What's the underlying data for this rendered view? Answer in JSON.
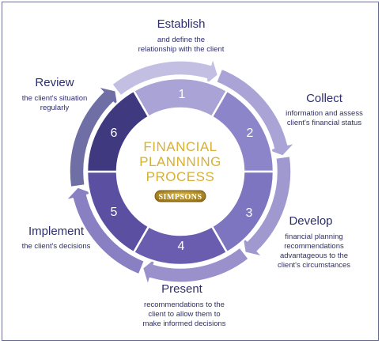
{
  "center": {
    "title_lines": [
      "FINANCIAL",
      "PLANNNING",
      "PROCESS"
    ],
    "logo": "SIMPSONS"
  },
  "stages": [
    {
      "num": "1",
      "title": "Establish",
      "desc": [
        "and define the",
        "relationship with the client"
      ]
    },
    {
      "num": "2",
      "title": "Collect",
      "desc": [
        "information and assess",
        "client's financial status"
      ]
    },
    {
      "num": "3",
      "title": "Develop",
      "desc": [
        "financial planning",
        "recommendations",
        "advantageous to the",
        "client's circumstances"
      ]
    },
    {
      "num": "4",
      "title": "Present",
      "desc": [
        "recommendations to the",
        "client to allow them to",
        "make informed decisions"
      ]
    },
    {
      "num": "5",
      "title": "Implement",
      "desc": [
        "the client's decisions"
      ]
    },
    {
      "num": "6",
      "title": "Review",
      "desc": [
        "the client's situation",
        "regularly"
      ]
    }
  ],
  "colors": {
    "segments": [
      "#aaa3d6",
      "#8d85c9",
      "#7d75bf",
      "#6a5cae",
      "#5a4fa1",
      "#3f3a80"
    ],
    "arrows": [
      "#c3bfe2",
      "#aaa3d6",
      "#9f99d0",
      "#9a91cc",
      "#8880c2",
      "#6f6fa6"
    ],
    "center_text": "#d7b035",
    "label_text": "#2e2e6e"
  }
}
